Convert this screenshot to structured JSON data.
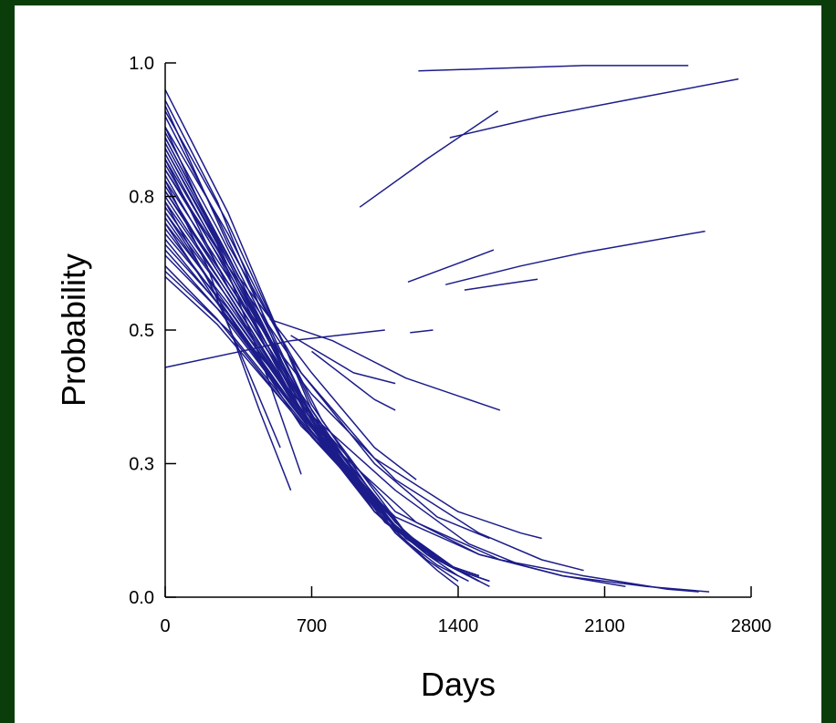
{
  "chart_data": {
    "type": "line",
    "xlabel": "Days",
    "ylabel": "Probability",
    "xlim": [
      0,
      2800
    ],
    "ylim": [
      0.0,
      1.0
    ],
    "x_ticks": [
      0,
      700,
      1400,
      2100,
      2800
    ],
    "x_tick_labels": [
      "0",
      "700",
      "1400",
      "2100",
      "2800"
    ],
    "y_ticks": [
      0.0,
      0.25,
      0.5,
      0.75,
      1.0
    ],
    "y_tick_labels": [
      "0.0",
      "0.3",
      "0.5",
      "0.8",
      "1.0"
    ],
    "grid": false,
    "legend": "none",
    "series_color": "#1c1c8a",
    "series": [
      {
        "x": [
          0,
          300,
          700,
          1100,
          1300,
          1400
        ],
        "y": [
          0.95,
          0.72,
          0.35,
          0.12,
          0.05,
          0.02
        ]
      },
      {
        "x": [
          0,
          250,
          600,
          1000,
          1250,
          1400
        ],
        "y": [
          0.93,
          0.74,
          0.4,
          0.16,
          0.07,
          0.03
        ]
      },
      {
        "x": [
          0,
          300,
          700,
          1100,
          1350,
          1500
        ],
        "y": [
          0.91,
          0.7,
          0.36,
          0.13,
          0.06,
          0.03
        ]
      },
      {
        "x": [
          0,
          250,
          650,
          1050,
          1300,
          1450
        ],
        "y": [
          0.9,
          0.71,
          0.38,
          0.15,
          0.07,
          0.04
        ]
      },
      {
        "x": [
          0,
          300,
          750,
          1150,
          1400,
          1550
        ],
        "y": [
          0.88,
          0.68,
          0.33,
          0.12,
          0.05,
          0.03
        ]
      },
      {
        "x": [
          0,
          250,
          700,
          1100,
          1350,
          1500
        ],
        "y": [
          0.87,
          0.69,
          0.34,
          0.13,
          0.06,
          0.04
        ]
      },
      {
        "x": [
          0,
          300,
          650,
          1000,
          1250,
          1400
        ],
        "y": [
          0.86,
          0.64,
          0.37,
          0.17,
          0.08,
          0.04
        ]
      },
      {
        "x": [
          0,
          250,
          700,
          1100,
          1300,
          1450
        ],
        "y": [
          0.85,
          0.67,
          0.32,
          0.12,
          0.06,
          0.03
        ]
      },
      {
        "x": [
          0,
          300,
          750,
          1150,
          1350,
          1500
        ],
        "y": [
          0.84,
          0.63,
          0.3,
          0.11,
          0.06,
          0.03
        ]
      },
      {
        "x": [
          0,
          250,
          650,
          1050,
          1300,
          1450
        ],
        "y": [
          0.83,
          0.65,
          0.35,
          0.14,
          0.07,
          0.04
        ]
      },
      {
        "x": [
          0,
          300,
          700,
          1100,
          1400,
          1550
        ],
        "y": [
          0.82,
          0.62,
          0.33,
          0.13,
          0.05,
          0.02
        ]
      },
      {
        "x": [
          0,
          250,
          600,
          1000,
          1250,
          1400
        ],
        "y": [
          0.81,
          0.64,
          0.38,
          0.16,
          0.08,
          0.05
        ]
      },
      {
        "x": [
          0,
          300,
          750,
          1150,
          1350,
          1500
        ],
        "y": [
          0.8,
          0.61,
          0.31,
          0.12,
          0.06,
          0.04
        ]
      },
      {
        "x": [
          0,
          250,
          700,
          1100,
          1300,
          1450
        ],
        "y": [
          0.79,
          0.62,
          0.34,
          0.14,
          0.07,
          0.04
        ]
      },
      {
        "x": [
          0,
          300,
          650,
          1050,
          1300,
          1450
        ],
        "y": [
          0.78,
          0.6,
          0.36,
          0.15,
          0.07,
          0.04
        ]
      },
      {
        "x": [
          0,
          250,
          700,
          1100,
          1350,
          1500
        ],
        "y": [
          0.77,
          0.61,
          0.33,
          0.13,
          0.06,
          0.03
        ]
      },
      {
        "x": [
          0,
          300,
          750,
          1150,
          1400,
          1550
        ],
        "y": [
          0.76,
          0.58,
          0.3,
          0.12,
          0.05,
          0.03
        ]
      },
      {
        "x": [
          0,
          250,
          650,
          1050,
          1300,
          1450
        ],
        "y": [
          0.75,
          0.6,
          0.35,
          0.15,
          0.07,
          0.04
        ]
      },
      {
        "x": [
          0,
          300,
          700,
          1100,
          1350,
          1500
        ],
        "y": [
          0.74,
          0.57,
          0.32,
          0.13,
          0.06,
          0.03
        ]
      },
      {
        "x": [
          0,
          250,
          600,
          1000,
          1250,
          1400
        ],
        "y": [
          0.73,
          0.59,
          0.37,
          0.16,
          0.08,
          0.05
        ]
      },
      {
        "x": [
          0,
          300,
          750,
          1150,
          1350,
          1500
        ],
        "y": [
          0.72,
          0.56,
          0.29,
          0.11,
          0.06,
          0.04
        ]
      },
      {
        "x": [
          0,
          250,
          700,
          1100,
          1300,
          1450
        ],
        "y": [
          0.71,
          0.57,
          0.32,
          0.13,
          0.07,
          0.04
        ]
      },
      {
        "x": [
          0,
          300,
          650,
          1050,
          1300,
          1450
        ],
        "y": [
          0.7,
          0.55,
          0.35,
          0.15,
          0.07,
          0.04
        ]
      },
      {
        "x": [
          0,
          250,
          700,
          1100,
          1350,
          1500
        ],
        "y": [
          0.69,
          0.56,
          0.31,
          0.13,
          0.06,
          0.03
        ]
      },
      {
        "x": [
          0,
          300,
          750,
          1150,
          1400,
          1550
        ],
        "y": [
          0.68,
          0.54,
          0.29,
          0.12,
          0.05,
          0.03
        ]
      },
      {
        "x": [
          0,
          250,
          650,
          1050,
          1300,
          1450
        ],
        "y": [
          0.67,
          0.55,
          0.34,
          0.15,
          0.07,
          0.04
        ]
      },
      {
        "x": [
          0,
          300,
          700,
          1100,
          1350,
          1500
        ],
        "y": [
          0.66,
          0.53,
          0.31,
          0.13,
          0.06,
          0.03
        ]
      },
      {
        "x": [
          0,
          250,
          600,
          1000,
          1250,
          1400
        ],
        "y": [
          0.65,
          0.54,
          0.36,
          0.16,
          0.08,
          0.05
        ]
      },
      {
        "x": [
          0,
          300,
          700,
          1100,
          1300,
          1450
        ],
        "y": [
          0.64,
          0.52,
          0.31,
          0.13,
          0.07,
          0.04
        ]
      },
      {
        "x": [
          0,
          250,
          700,
          1100,
          1350,
          1500
        ],
        "y": [
          0.62,
          0.52,
          0.3,
          0.13,
          0.06,
          0.03
        ]
      },
      {
        "x": [
          0,
          300,
          650,
          1050,
          1300,
          1450
        ],
        "y": [
          0.61,
          0.5,
          0.33,
          0.15,
          0.07,
          0.04
        ]
      },
      {
        "x": [
          0,
          250,
          750,
          1150,
          1350,
          1500
        ],
        "y": [
          0.6,
          0.51,
          0.28,
          0.11,
          0.06,
          0.04
        ]
      },
      {
        "x": [
          0,
          200,
          450,
          600
        ],
        "y": [
          0.78,
          0.62,
          0.35,
          0.2
        ]
      },
      {
        "x": [
          0,
          250,
          500,
          650
        ],
        "y": [
          0.84,
          0.66,
          0.4,
          0.23
        ]
      },
      {
        "x": [
          0,
          200,
          400,
          550
        ],
        "y": [
          0.72,
          0.6,
          0.42,
          0.28
        ]
      },
      {
        "x": [
          0,
          300,
          650,
          1000,
          1400,
          1700,
          1800
        ],
        "y": [
          0.8,
          0.62,
          0.42,
          0.26,
          0.16,
          0.12,
          0.11
        ]
      },
      {
        "x": [
          0,
          350,
          700,
          1100,
          1500,
          1800,
          2000
        ],
        "y": [
          0.76,
          0.56,
          0.38,
          0.22,
          0.12,
          0.07,
          0.05
        ]
      },
      {
        "x": [
          0,
          300,
          700,
          1100,
          1500,
          1900,
          2300,
          2600
        ],
        "y": [
          0.88,
          0.62,
          0.34,
          0.16,
          0.08,
          0.04,
          0.02,
          0.01
        ]
      },
      {
        "x": [
          0,
          300,
          750,
          1200,
          1600,
          2000,
          2400,
          2550
        ],
        "y": [
          0.82,
          0.58,
          0.3,
          0.14,
          0.07,
          0.04,
          0.015,
          0.01
        ]
      },
      {
        "x": [
          0,
          250,
          650,
          1100,
          1500,
          1900,
          2200
        ],
        "y": [
          0.74,
          0.56,
          0.32,
          0.15,
          0.08,
          0.04,
          0.02
        ]
      },
      {
        "x": [
          0,
          300,
          700,
          1100,
          1450,
          1700
        ],
        "y": [
          0.7,
          0.52,
          0.34,
          0.2,
          0.1,
          0.06
        ]
      },
      {
        "x": [
          0,
          300,
          650,
          1000,
          1300,
          1550
        ],
        "y": [
          0.92,
          0.66,
          0.42,
          0.25,
          0.15,
          0.11
        ]
      },
      {
        "x": [
          0,
          350,
          700,
          1000,
          1200
        ],
        "y": [
          0.86,
          0.6,
          0.42,
          0.28,
          0.22
        ]
      },
      {
        "x": [
          500,
          800,
          1150,
          1600
        ],
        "y": [
          0.52,
          0.48,
          0.41,
          0.35
        ]
      },
      {
        "x": [
          600,
          900,
          1100
        ],
        "y": [
          0.49,
          0.42,
          0.4
        ]
      },
      {
        "x": [
          700,
          900,
          1000,
          1100
        ],
        "y": [
          0.46,
          0.4,
          0.37,
          0.35
        ]
      },
      {
        "x": [
          0,
          600,
          1050
        ],
        "y": [
          0.43,
          0.48,
          0.5
        ]
      },
      {
        "x": [
          1170,
          1280
        ],
        "y": [
          0.495,
          0.5
        ]
      },
      {
        "x": [
          1210,
          1600,
          2000,
          2500
        ],
        "y": [
          0.985,
          0.99,
          0.995,
          0.995
        ]
      },
      {
        "x": [
          930,
          1250,
          1590
        ],
        "y": [
          0.73,
          0.82,
          0.91
        ]
      },
      {
        "x": [
          1360,
          1800,
          2200,
          2740
        ],
        "y": [
          0.86,
          0.9,
          0.93,
          0.97
        ]
      },
      {
        "x": [
          1160,
          1400,
          1570
        ],
        "y": [
          0.59,
          0.625,
          0.65
        ]
      },
      {
        "x": [
          1340,
          1700,
          2000,
          2580
        ],
        "y": [
          0.585,
          0.62,
          0.645,
          0.685
        ]
      },
      {
        "x": [
          1430,
          1600,
          1780
        ],
        "y": [
          0.575,
          0.585,
          0.595
        ]
      }
    ]
  }
}
